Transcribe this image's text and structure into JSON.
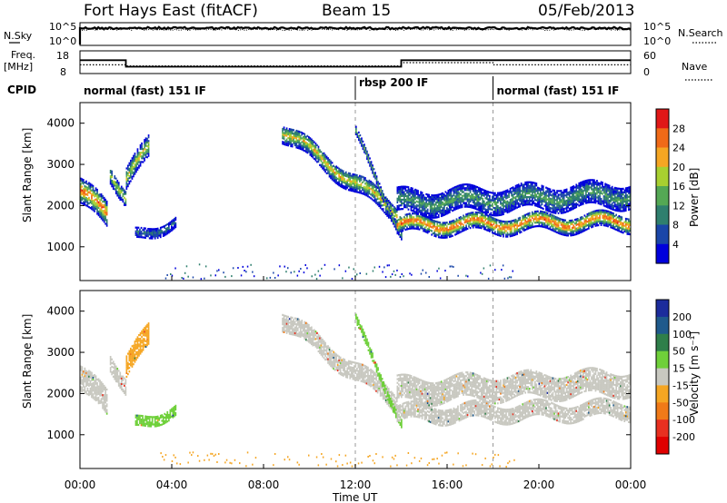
{
  "header": {
    "site": "Fort Hays East (fitACF)",
    "beam": "Beam 15",
    "date": "05/Feb/2013"
  },
  "nsky_panel": {
    "left_label": "N.Sky",
    "right_label": "N.Search",
    "left_ticks": [
      "10^5",
      "10^0"
    ],
    "right_ticks": [
      "10^5",
      "10^0"
    ]
  },
  "freq_panel": {
    "left_label_line1": "Freq.",
    "left_label_line2": "[MHz]",
    "left_ticks": [
      "18",
      "8"
    ],
    "right_label": "Nave",
    "right_ticks": [
      "60",
      "0"
    ],
    "freq_steps": [
      {
        "t_start": 0.0,
        "t_end": 2.0,
        "mhz": 14.5
      },
      {
        "t_start": 2.0,
        "t_end": 14.0,
        "mhz": 10.5
      },
      {
        "t_start": 14.0,
        "t_end": 24.0,
        "mhz": 14.5
      }
    ],
    "nave_steps": [
      {
        "t_start": 0.0,
        "t_end": 2.0,
        "nave": 22
      },
      {
        "t_start": 2.0,
        "t_end": 14.0,
        "nave": 18
      },
      {
        "t_start": 14.0,
        "t_end": 18.0,
        "nave": 30
      },
      {
        "t_start": 18.0,
        "t_end": 24.0,
        "nave": 22
      }
    ]
  },
  "cpid": {
    "label": "CPID",
    "modes": [
      {
        "t_start": 0.0,
        "text": "normal (fast) 151 IF"
      },
      {
        "t_start": 12.0,
        "text": "rbsp 200 IF"
      },
      {
        "t_start": 18.0,
        "text": "normal (fast) 151 IF"
      }
    ]
  },
  "chart_data": [
    {
      "type": "heatmap",
      "name": "power_panel",
      "ylabel": "Slant Range [km]",
      "yticks": [
        "1000",
        "2000",
        "3000",
        "4000"
      ],
      "ylim": [
        180,
        4500
      ],
      "colorbar_label": "Power [dB]",
      "colorbar_ticks": [
        "4",
        "8",
        "12",
        "16",
        "20",
        "24",
        "28"
      ],
      "colorbar_range": [
        0,
        30
      ],
      "colors": [
        "#0000dc",
        "#1a46a8",
        "#2f7f6e",
        "#54a854",
        "#a8d030",
        "#f5a623",
        "#f06a18",
        "#e01818"
      ],
      "echo_bands": [
        {
          "t_start": 0.0,
          "t_end": 1.2,
          "r_start": 2350,
          "r_end": 1700,
          "width": 600,
          "peak_db": 26
        },
        {
          "t_start": 1.3,
          "t_end": 2.0,
          "r_start": 2800,
          "r_end": 2200,
          "width": 400,
          "peak_db": 18
        },
        {
          "t_start": 2.0,
          "t_end": 3.0,
          "r_start": 2600,
          "r_end": 3400,
          "width": 500,
          "peak_db": 18
        },
        {
          "t_start": 2.4,
          "t_end": 4.2,
          "r_start": 1250,
          "r_end": 1600,
          "width": 250,
          "peak_db": 8
        },
        {
          "t_start": 8.8,
          "t_end": 13.8,
          "r_start": 3800,
          "r_end": 1800,
          "width": 450,
          "peak_db": 20
        },
        {
          "t_start": 12.0,
          "t_end": 14.0,
          "r_start": 3700,
          "r_end": 1300,
          "width": 200,
          "peak_db": 14
        },
        {
          "t_start": 13.8,
          "t_end": 24.0,
          "r_start": 1500,
          "r_end": 1600,
          "width": 400,
          "peak_db": 26
        },
        {
          "t_start": 13.8,
          "t_end": 24.0,
          "r_start": 2050,
          "r_end": 2250,
          "width": 550,
          "peak_db": 12
        }
      ]
    },
    {
      "type": "heatmap",
      "name": "velocity_panel",
      "ylabel": "Slant Range [km]",
      "yticks": [
        "1000",
        "2000",
        "3000",
        "4000"
      ],
      "ylim": [
        180,
        4500
      ],
      "colorbar_label": "Velocity [m s⁻¹]",
      "colorbar_ticks": [
        "200",
        "100",
        "50",
        "15",
        "-15",
        "-50",
        "-100",
        "-200"
      ],
      "colorbar_range": [
        -250,
        250
      ],
      "colors": [
        "#1c2c9c",
        "#1f5a8c",
        "#2f7f4a",
        "#6fd03a",
        "#c8c8c0",
        "#f5a623",
        "#f07a18",
        "#e83020",
        "#e00000"
      ],
      "echo_bands": [
        {
          "t_start": 0.0,
          "t_end": 1.2,
          "r_start": 2350,
          "r_end": 1700,
          "width": 600,
          "vel": 0
        },
        {
          "t_start": 1.3,
          "t_end": 2.0,
          "r_start": 2800,
          "r_end": 2200,
          "width": 400,
          "vel": 0
        },
        {
          "t_start": 2.0,
          "t_end": 3.0,
          "r_start": 2600,
          "r_end": 3400,
          "width": 500,
          "vel": -60
        },
        {
          "t_start": 2.4,
          "t_end": 4.2,
          "r_start": 1250,
          "r_end": 1600,
          "width": 250,
          "vel": 40
        },
        {
          "t_start": 8.8,
          "t_end": 13.8,
          "r_start": 3800,
          "r_end": 1800,
          "width": 450,
          "vel": 0
        },
        {
          "t_start": 12.0,
          "t_end": 14.0,
          "r_start": 3700,
          "r_end": 1300,
          "width": 200,
          "vel": 40
        },
        {
          "t_start": 13.8,
          "t_end": 24.0,
          "r_start": 1500,
          "r_end": 1600,
          "width": 400,
          "vel": 0
        },
        {
          "t_start": 13.8,
          "t_end": 24.0,
          "r_start": 2050,
          "r_end": 2250,
          "width": 550,
          "vel": 0
        }
      ]
    }
  ],
  "x_axis": {
    "label": "Time UT",
    "range_hours": [
      0,
      24
    ],
    "ticks": [
      {
        "hour": 0,
        "label": "00:00"
      },
      {
        "hour": 4,
        "label": "04:00"
      },
      {
        "hour": 8,
        "label": "08:00"
      },
      {
        "hour": 12,
        "label": "12:00"
      },
      {
        "hour": 16,
        "label": "16:00"
      },
      {
        "hour": 20,
        "label": "20:00"
      },
      {
        "hour": 24,
        "label": "00:00"
      }
    ]
  }
}
